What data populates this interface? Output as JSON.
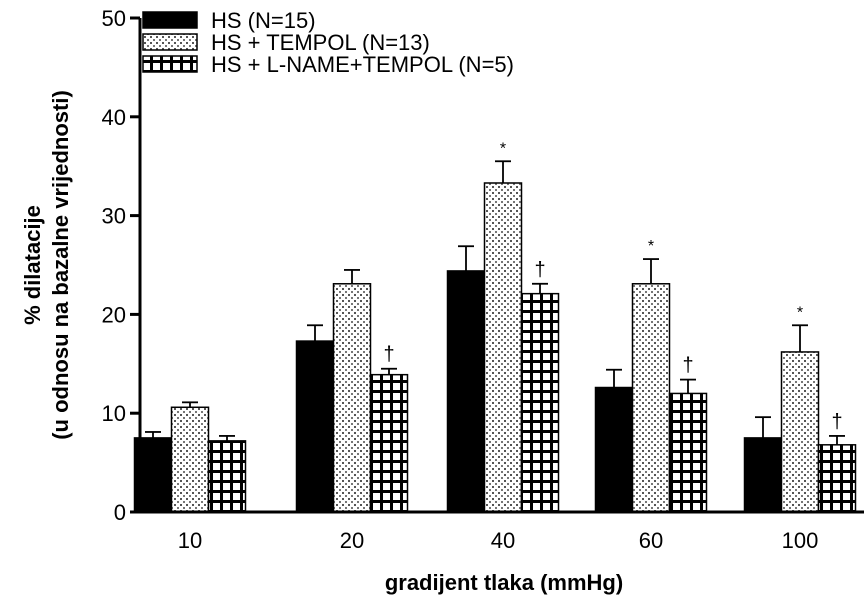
{
  "chart_data": {
    "type": "bar",
    "title": "",
    "xlabel": "gradijent tlaka (mmHg)",
    "ylabel": [
      "% dilatacije",
      "(u odnosu na bazalne vrijednosti)"
    ],
    "ylim": [
      0,
      50
    ],
    "yticks": [
      0,
      10,
      20,
      30,
      40,
      50
    ],
    "categories": [
      "10",
      "20",
      "40",
      "60",
      "100"
    ],
    "legend_position": "top-left",
    "series": [
      {
        "name": "HS (N=15)",
        "pattern": "solid",
        "color": "#000000",
        "values": [
          7.5,
          17.3,
          24.4,
          12.6,
          7.5
        ],
        "errors": [
          0.6,
          1.6,
          2.5,
          1.8,
          2.1
        ],
        "markers": [
          "",
          "",
          "",
          "",
          ""
        ]
      },
      {
        "name": "HS + TEMPOL (N=13)",
        "pattern": "dots",
        "color": "#ffffff",
        "values": [
          10.6,
          23.1,
          33.3,
          23.1,
          16.2
        ],
        "errors": [
          0.5,
          1.4,
          2.2,
          2.5,
          2.7
        ],
        "markers": [
          "",
          "",
          "*",
          "*",
          "*"
        ]
      },
      {
        "name": "HS + L-NAME+TEMPOL (N=5)",
        "pattern": "grid",
        "color": "#000000",
        "values": [
          7.2,
          13.9,
          22.1,
          12.0,
          6.8
        ],
        "errors": [
          0.5,
          0.6,
          1.0,
          1.4,
          0.9
        ],
        "markers": [
          "",
          "†",
          "†",
          "†",
          "†"
        ]
      }
    ]
  }
}
